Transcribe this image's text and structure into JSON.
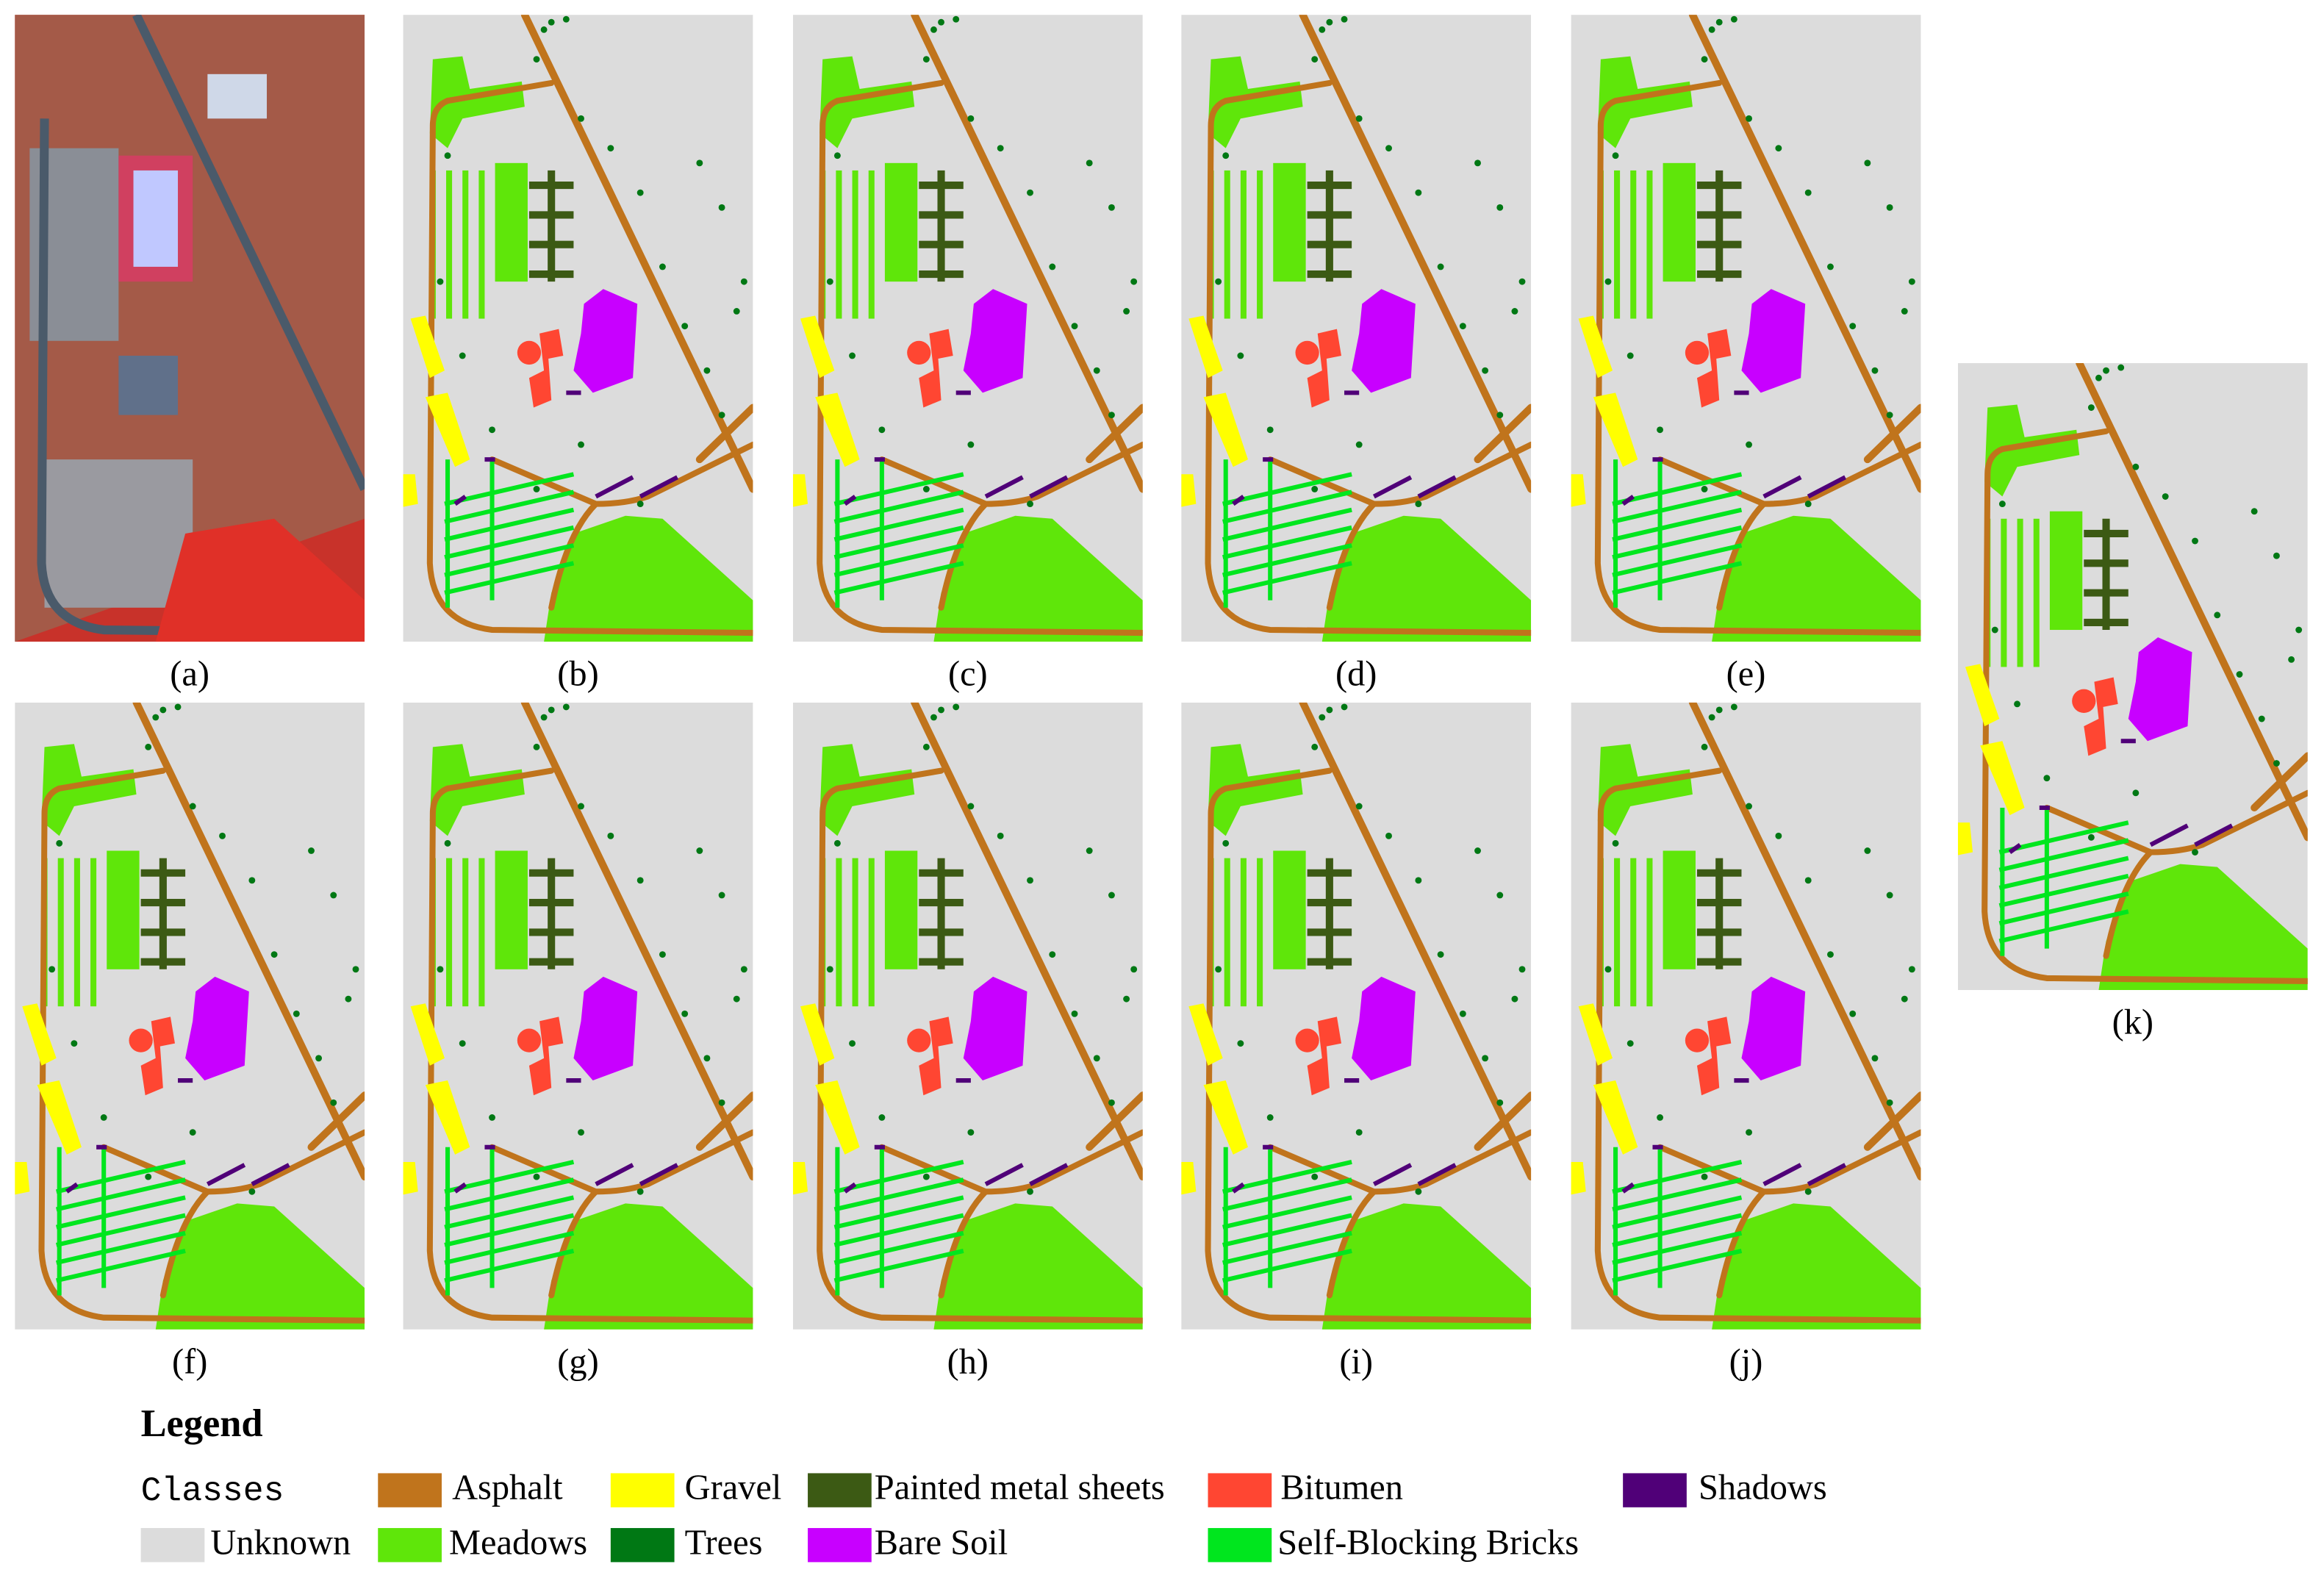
{
  "panels": [
    {
      "label": "(a)"
    },
    {
      "label": "(b)"
    },
    {
      "label": "(c)"
    },
    {
      "label": "(d)"
    },
    {
      "label": "(e)"
    },
    {
      "label": "(f)"
    },
    {
      "label": "(g)"
    },
    {
      "label": "(h)"
    },
    {
      "label": "(i)"
    },
    {
      "label": "(j)"
    },
    {
      "label": "(k)"
    }
  ],
  "legend": {
    "title": "Legend",
    "heading": "Classes",
    "items": [
      {
        "name": "Asphalt",
        "color": "#c0741c"
      },
      {
        "name": "Gravel",
        "color": "#ffff00"
      },
      {
        "name": "Painted metal sheets",
        "color": "#3c5a14"
      },
      {
        "name": "Bitumen",
        "color": "#ff4632"
      },
      {
        "name": "Shadows",
        "color": "#500078"
      },
      {
        "name": "Unknown",
        "color": "#dcdcdc"
      },
      {
        "name": "Meadows",
        "color": "#5fe60a"
      },
      {
        "name": "Trees",
        "color": "#007814"
      },
      {
        "name": "Bare Soil",
        "color": "#c800ff"
      },
      {
        "name": "Self-Blocking Bricks",
        "color": "#00e61e"
      }
    ]
  }
}
